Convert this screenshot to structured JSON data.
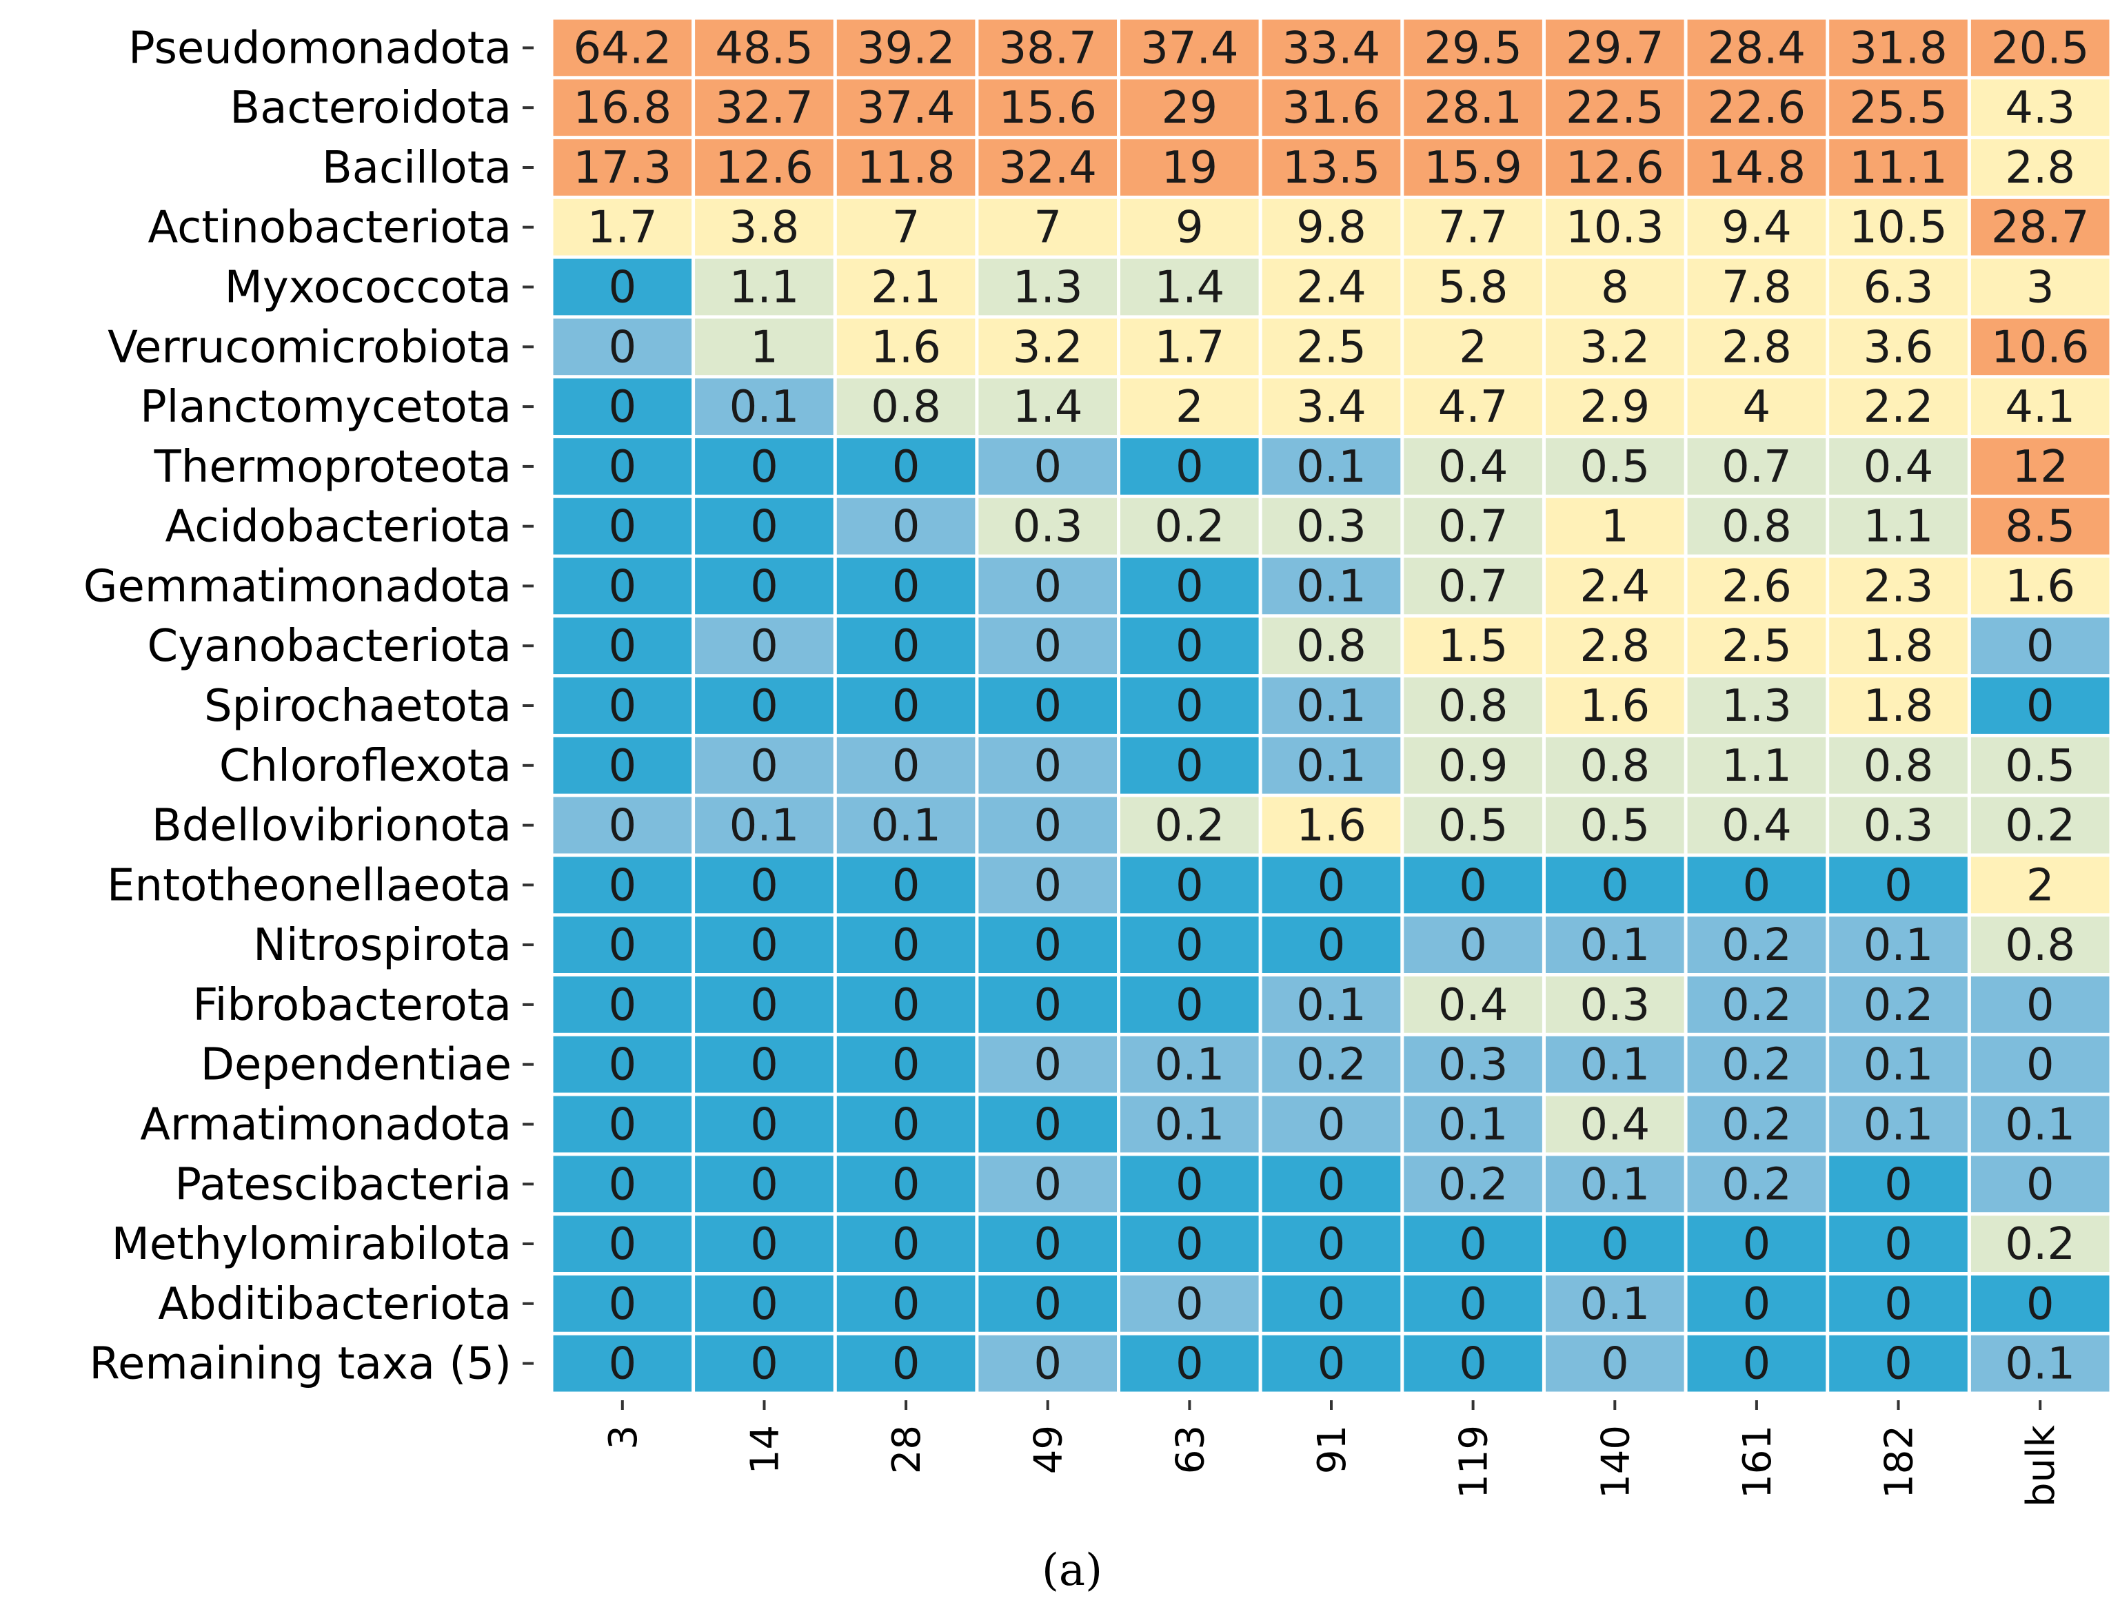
{
  "chart_data": {
    "type": "heatmap",
    "title": "",
    "xlabel": "",
    "ylabel": "",
    "caption": "(a)",
    "x": [
      "3",
      "14",
      "28",
      "49",
      "63",
      "91",
      "119",
      "140",
      "161",
      "182",
      "bulk"
    ],
    "y": [
      "Pseudomonadota",
      "Bacteroidota",
      "Bacillota",
      "Actinobacteriota",
      "Myxococcota",
      "Verrucomicrobiota",
      "Planctomycetota",
      "Thermoproteota",
      "Acidobacteriota",
      "Gemmatimonadota",
      "Cyanobacteriota",
      "Spirochaetota",
      "Chloroflexota",
      "Bdellovibrionota",
      "Entotheonellaeota",
      "Nitrospirota",
      "Fibrobacterota",
      "Dependentiae",
      "Armatimonadota",
      "Patescibacteria",
      "Methylomirabilota",
      "Abditibacteriota",
      "Remaining taxa (5)"
    ],
    "values": [
      [
        64.2,
        48.5,
        39.2,
        38.7,
        37.4,
        33.4,
        29.5,
        29.7,
        28.4,
        31.8,
        20.5
      ],
      [
        16.8,
        32.7,
        37.4,
        15.6,
        29,
        31.6,
        28.1,
        22.5,
        22.6,
        25.5,
        4.3
      ],
      [
        17.3,
        12.6,
        11.8,
        32.4,
        19,
        13.5,
        15.9,
        12.6,
        14.8,
        11.1,
        2.8
      ],
      [
        1.7,
        3.8,
        7,
        7,
        9,
        9.8,
        7.7,
        10.3,
        9.4,
        10.5,
        28.7
      ],
      [
        0,
        1.1,
        2.1,
        1.3,
        1.4,
        2.4,
        5.8,
        8,
        7.8,
        6.3,
        3
      ],
      [
        0,
        1,
        1.6,
        3.2,
        1.7,
        2.5,
        2,
        3.2,
        2.8,
        3.6,
        10.6
      ],
      [
        0,
        0.1,
        0.8,
        1.4,
        2,
        3.4,
        4.7,
        2.9,
        4,
        2.2,
        4.1
      ],
      [
        0,
        0,
        0,
        0,
        0,
        0.1,
        0.4,
        0.5,
        0.7,
        0.4,
        12
      ],
      [
        0,
        0,
        0,
        0.3,
        0.2,
        0.3,
        0.7,
        1,
        0.8,
        1.1,
        8.5
      ],
      [
        0,
        0,
        0,
        0,
        0,
        0.1,
        0.7,
        2.4,
        2.6,
        2.3,
        1.6
      ],
      [
        0,
        0,
        0,
        0,
        0,
        0.8,
        1.5,
        2.8,
        2.5,
        1.8,
        0
      ],
      [
        0,
        0,
        0,
        0,
        0,
        0.1,
        0.8,
        1.6,
        1.3,
        1.8,
        0
      ],
      [
        0,
        0,
        0,
        0,
        0,
        0.1,
        0.9,
        0.8,
        1.1,
        0.8,
        0.5
      ],
      [
        0,
        0.1,
        0.1,
        0,
        0.2,
        1.6,
        0.5,
        0.5,
        0.4,
        0.3,
        0.2
      ],
      [
        0,
        0,
        0,
        0,
        0,
        0,
        0,
        0,
        0,
        0,
        2
      ],
      [
        0,
        0,
        0,
        0,
        0,
        0,
        0,
        0.1,
        0.2,
        0.1,
        0.8
      ],
      [
        0,
        0,
        0,
        0,
        0,
        0.1,
        0.4,
        0.3,
        0.2,
        0.2,
        0
      ],
      [
        0,
        0,
        0,
        0,
        0.1,
        0.2,
        0.3,
        0.1,
        0.2,
        0.1,
        0
      ],
      [
        0,
        0,
        0,
        0,
        0.1,
        0,
        0.1,
        0.4,
        0.2,
        0.1,
        0.1
      ],
      [
        0,
        0,
        0,
        0,
        0,
        0,
        0.2,
        0.1,
        0.2,
        0,
        0
      ],
      [
        0,
        0,
        0,
        0,
        0,
        0,
        0,
        0,
        0,
        0,
        0.2
      ],
      [
        0,
        0,
        0,
        0,
        0,
        0,
        0,
        0.1,
        0,
        0,
        0
      ],
      [
        0,
        0,
        0,
        0,
        0,
        0,
        0,
        0,
        0,
        0,
        0.1
      ]
    ],
    "cell_shade": [
      [
        4,
        4,
        4,
        4,
        4,
        4,
        4,
        4,
        4,
        4,
        4
      ],
      [
        4,
        4,
        4,
        4,
        4,
        4,
        4,
        4,
        4,
        4,
        3
      ],
      [
        4,
        4,
        4,
        4,
        4,
        4,
        4,
        4,
        4,
        4,
        3
      ],
      [
        3,
        3,
        3,
        3,
        3,
        3,
        3,
        3,
        3,
        3,
        4
      ],
      [
        0,
        2,
        3,
        2,
        2,
        3,
        3,
        3,
        3,
        3,
        3
      ],
      [
        1,
        2,
        3,
        3,
        3,
        3,
        3,
        3,
        3,
        3,
        4
      ],
      [
        0,
        1,
        2,
        2,
        3,
        3,
        3,
        3,
        3,
        3,
        3
      ],
      [
        0,
        0,
        0,
        1,
        0,
        1,
        2,
        2,
        2,
        2,
        4
      ],
      [
        0,
        0,
        1,
        2,
        2,
        2,
        2,
        3,
        2,
        2,
        4
      ],
      [
        0,
        0,
        0,
        1,
        0,
        1,
        2,
        3,
        3,
        3,
        3
      ],
      [
        0,
        1,
        0,
        1,
        0,
        2,
        3,
        3,
        3,
        3,
        1
      ],
      [
        0,
        0,
        0,
        0,
        0,
        1,
        2,
        3,
        2,
        3,
        0
      ],
      [
        0,
        1,
        1,
        1,
        0,
        1,
        2,
        2,
        2,
        2,
        2
      ],
      [
        1,
        1,
        1,
        1,
        2,
        3,
        2,
        2,
        2,
        2,
        2
      ],
      [
        0,
        0,
        0,
        1,
        0,
        0,
        0,
        0,
        0,
        0,
        3
      ],
      [
        0,
        0,
        0,
        0,
        0,
        0,
        1,
        1,
        1,
        1,
        2
      ],
      [
        0,
        0,
        0,
        0,
        0,
        1,
        2,
        2,
        1,
        1,
        1
      ],
      [
        0,
        0,
        0,
        1,
        1,
        1,
        1,
        1,
        1,
        1,
        1
      ],
      [
        0,
        0,
        0,
        0,
        1,
        1,
        1,
        2,
        1,
        1,
        1
      ],
      [
        0,
        0,
        0,
        1,
        0,
        0,
        1,
        1,
        1,
        0,
        1
      ],
      [
        0,
        0,
        0,
        0,
        0,
        0,
        0,
        0,
        0,
        0,
        2
      ],
      [
        0,
        0,
        0,
        0,
        1,
        0,
        0,
        1,
        0,
        0,
        0
      ],
      [
        0,
        0,
        0,
        1,
        0,
        0,
        0,
        1,
        0,
        0,
        1
      ]
    ],
    "palette": [
      "#32a9d3",
      "#7ebddc",
      "#dde9cd",
      "#fff1b8",
      "#f8a56e"
    ],
    "bg_color": "#ffffff",
    "grid_color": "#ffffff",
    "text_color": "#1a1a1a",
    "legend": "none"
  }
}
